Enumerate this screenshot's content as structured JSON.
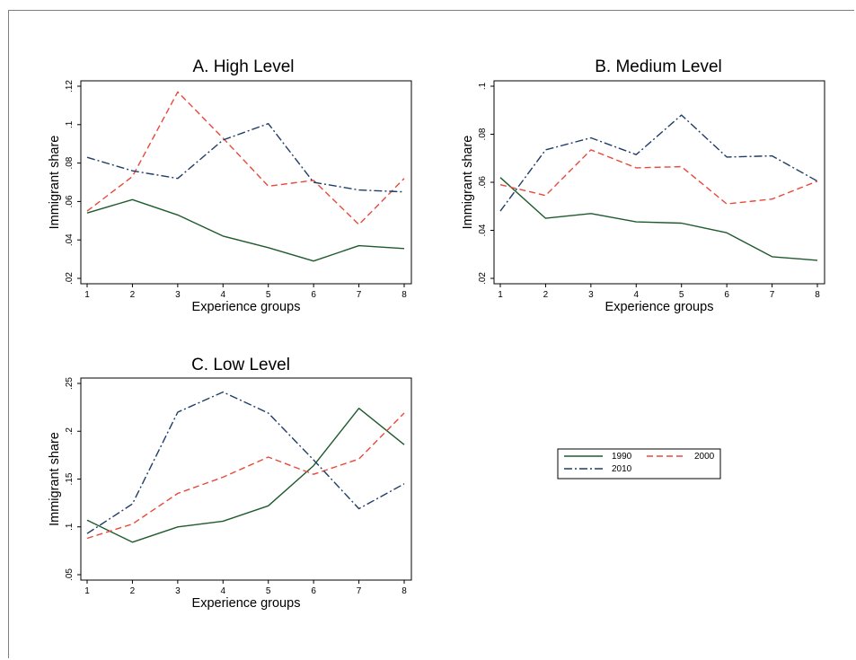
{
  "colors": {
    "s1990": "#1e5a2d",
    "s2000": "#e8493b",
    "s2010": "#1f3d66"
  },
  "legend": {
    "items": [
      {
        "name": "1990",
        "color": "#1e5a2d",
        "dash": "solid"
      },
      {
        "name": "2000",
        "color": "#e8493b",
        "dash": "dashed"
      },
      {
        "name": "2010",
        "color": "#1f3d66",
        "dash": "dashdot"
      }
    ]
  },
  "chart_data": [
    {
      "type": "line",
      "title": "A. High Level",
      "xlabel": "Experience groups",
      "ylabel": "Immigrant share",
      "x": [
        1,
        2,
        3,
        4,
        5,
        6,
        7,
        8
      ],
      "xticks": [
        "1",
        "2",
        "3",
        "4",
        "5",
        "6",
        "7",
        "8"
      ],
      "ylim": [
        0.02,
        0.12
      ],
      "yticks": [
        0.02,
        0.04,
        0.06,
        0.08,
        0.1,
        0.12
      ],
      "ytick_labels": [
        ".02",
        ".04",
        ".06",
        ".08",
        ".1",
        ".12"
      ],
      "series": [
        {
          "name": "1990",
          "values": [
            0.054,
            0.061,
            0.053,
            0.042,
            0.036,
            0.029,
            0.037,
            0.0355
          ]
        },
        {
          "name": "2000",
          "values": [
            0.055,
            0.073,
            0.117,
            0.093,
            0.068,
            0.071,
            0.048,
            0.072
          ]
        },
        {
          "name": "2010",
          "values": [
            0.083,
            0.076,
            0.072,
            0.092,
            0.1005,
            0.07,
            0.066,
            0.065
          ]
        }
      ]
    },
    {
      "type": "line",
      "title": "B. Medium Level",
      "xlabel": "Experience groups",
      "ylabel": "Immigrant share",
      "x": [
        1,
        2,
        3,
        4,
        5,
        6,
        7,
        8
      ],
      "xticks": [
        "1",
        "2",
        "3",
        "4",
        "5",
        "6",
        "7",
        "8"
      ],
      "ylim": [
        0.02,
        0.1
      ],
      "yticks": [
        0.02,
        0.04,
        0.06,
        0.08,
        0.1
      ],
      "ytick_labels": [
        ".02",
        ".04",
        ".06",
        ".08",
        ".1"
      ],
      "series": [
        {
          "name": "1990",
          "values": [
            0.062,
            0.045,
            0.047,
            0.0435,
            0.043,
            0.039,
            0.029,
            0.0275
          ]
        },
        {
          "name": "2000",
          "values": [
            0.059,
            0.0545,
            0.0735,
            0.066,
            0.0665,
            0.051,
            0.053,
            0.0605
          ]
        },
        {
          "name": "2010",
          "values": [
            0.048,
            0.0735,
            0.0785,
            0.0715,
            0.088,
            0.0705,
            0.071,
            0.0605
          ]
        }
      ]
    },
    {
      "type": "line",
      "title": "C. Low Level",
      "xlabel": "Experience groups",
      "ylabel": "Immigrant share",
      "x": [
        1,
        2,
        3,
        4,
        5,
        6,
        7,
        8
      ],
      "xticks": [
        "1",
        "2",
        "3",
        "4",
        "5",
        "6",
        "7",
        "8"
      ],
      "ylim": [
        0.05,
        0.25
      ],
      "yticks": [
        0.05,
        0.1,
        0.15,
        0.2,
        0.25
      ],
      "ytick_labels": [
        ".05",
        ".1",
        ".15",
        ".2",
        ".25"
      ],
      "series": [
        {
          "name": "1990",
          "values": [
            0.107,
            0.084,
            0.1,
            0.106,
            0.122,
            0.164,
            0.224,
            0.186
          ]
        },
        {
          "name": "2000",
          "values": [
            0.088,
            0.103,
            0.135,
            0.152,
            0.173,
            0.155,
            0.171,
            0.219
          ]
        },
        {
          "name": "2010",
          "values": [
            0.093,
            0.124,
            0.22,
            0.241,
            0.219,
            0.17,
            0.119,
            0.145
          ]
        }
      ]
    }
  ]
}
